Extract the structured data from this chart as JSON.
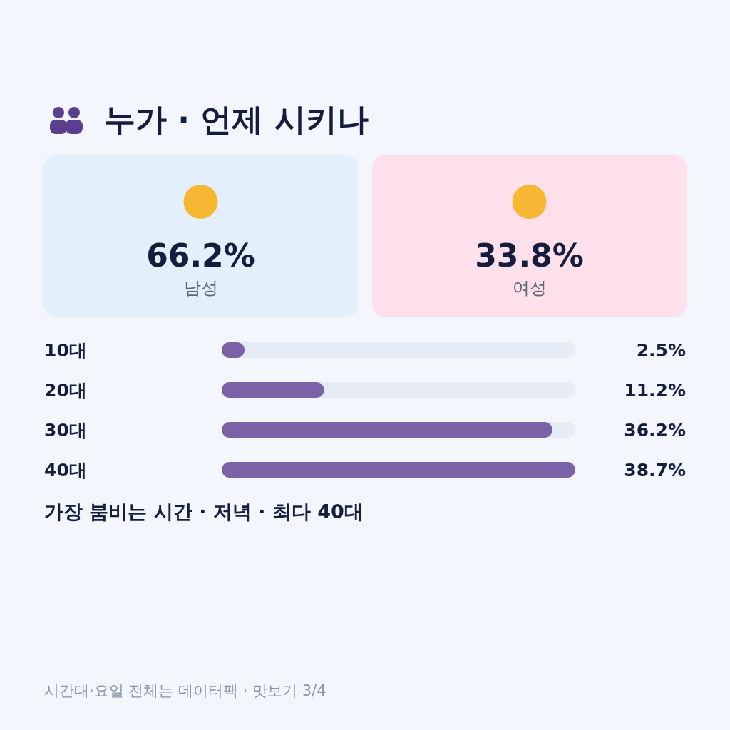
{
  "chart_data": [
    {
      "type": "other",
      "title": "누가 · 언제 시키나",
      "categories": [
        "남성",
        "여성"
      ],
      "values": [
        66.2,
        33.8
      ],
      "value_labels": [
        "66.2%",
        "33.8%"
      ],
      "colors": [
        "#e3f0fb",
        "#fde0ea"
      ]
    },
    {
      "type": "bar",
      "orientation": "horizontal",
      "categories": [
        "10대",
        "20대",
        "30대",
        "40대"
      ],
      "values": [
        2.5,
        11.2,
        36.2,
        38.7
      ],
      "value_labels": [
        "2.5%",
        "11.2%",
        "36.2%",
        "38.7%"
      ],
      "color": "#7b61a8",
      "xlim": [
        0,
        38.7
      ],
      "annotations": [
        "가장 붐비는 시간 · 저녁 · 최다 40대",
        "시간대·요일 전체는 데이터팩 · 맛보기 3/4"
      ]
    }
  ]
}
